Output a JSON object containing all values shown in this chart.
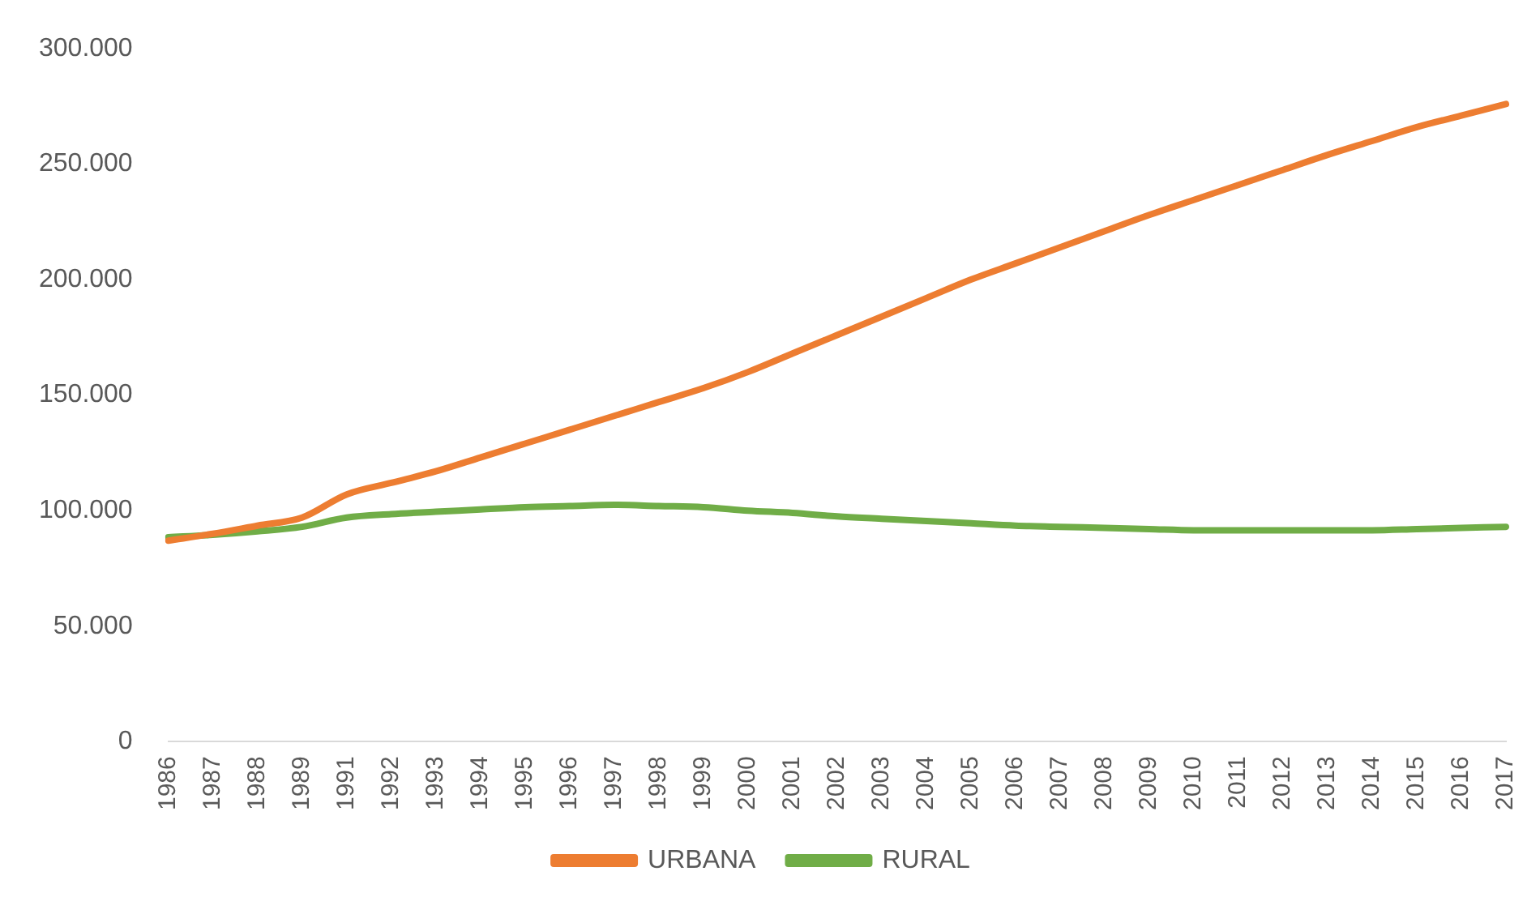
{
  "chart_data": {
    "type": "line",
    "categories": [
      "1986",
      "1987",
      "1988",
      "1989",
      "1991",
      "1992",
      "1993",
      "1994",
      "1995",
      "1996",
      "1997",
      "1998",
      "1999",
      "2000",
      "2001",
      "2002",
      "2003",
      "2004",
      "2005",
      "2006",
      "2007",
      "2008",
      "2009",
      "2010",
      "2011",
      "2012",
      "2013",
      "2014",
      "2015",
      "2016",
      "2017"
    ],
    "series": [
      {
        "name": "URBANA",
        "color": "#ed7d31",
        "values": [
          87000,
          90000,
          93500,
          97000,
          107000,
          112000,
          117000,
          123000,
          129000,
          135000,
          141000,
          147000,
          153000,
          160000,
          168000,
          176000,
          184000,
          192000,
          200000,
          207000,
          214000,
          221000,
          228000,
          234500,
          241000,
          247500,
          254000,
          260000,
          266000,
          271000,
          276000
        ]
      },
      {
        "name": "RURAL",
        "color": "#70ad47",
        "values": [
          88500,
          89500,
          91000,
          93000,
          97000,
          98500,
          99500,
          100500,
          101500,
          102000,
          102500,
          102000,
          101500,
          100000,
          99000,
          97500,
          96500,
          95500,
          94500,
          93500,
          93000,
          92500,
          92000,
          91500,
          91500,
          91500,
          91500,
          91500,
          92000,
          92500,
          93000
        ]
      }
    ],
    "ylim": [
      0,
      300000
    ],
    "yticks": [
      0,
      {
        "value": 50000,
        "label": "50.000"
      },
      {
        "value": 100000,
        "label": "100.000"
      },
      {
        "value": 150000,
        "label": "150.000"
      },
      {
        "value": 200000,
        "label": "200.000"
      },
      {
        "value": 250000,
        "label": "250.000"
      },
      {
        "value": 300000,
        "label": "300.000"
      }
    ],
    "grid": false,
    "legend": "bottom",
    "marker": "none",
    "line_style": "solid"
  }
}
